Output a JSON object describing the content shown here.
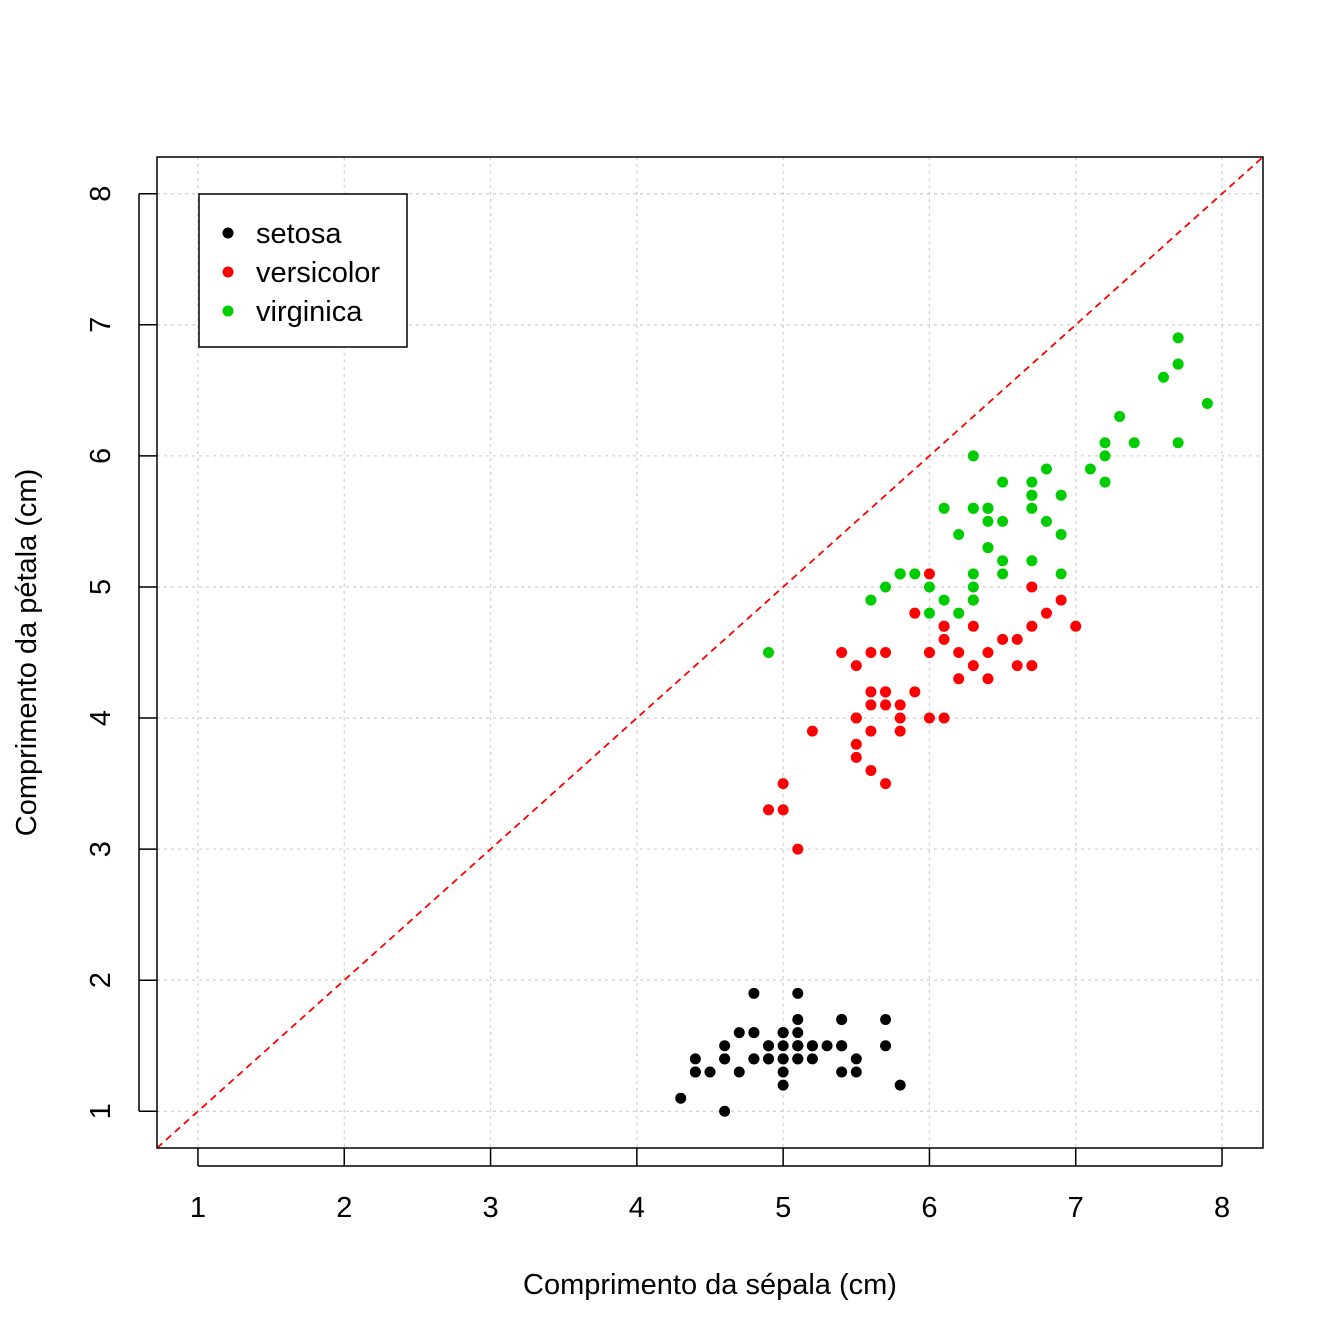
{
  "chart_data": {
    "type": "scatter",
    "title": "",
    "xlabel": "Comprimento da sépala (cm)",
    "ylabel": "Comprimento da pétala (cm)",
    "xlim": [
      0.72,
      8.28
    ],
    "ylim": [
      0.72,
      8.28
    ],
    "xticks": [
      "1",
      "2",
      "3",
      "4",
      "5",
      "6",
      "7",
      "8"
    ],
    "yticks": [
      "1",
      "2",
      "3",
      "4",
      "5",
      "6",
      "7",
      "8"
    ],
    "grid": true,
    "legend_position": "top-left",
    "reference_line": {
      "slope": 1,
      "intercept": 0,
      "color": "#ff0000",
      "style": "dashed"
    },
    "series": [
      {
        "name": "setosa",
        "color": "#000000",
        "points": [
          [
            5.1,
            1.4
          ],
          [
            4.9,
            1.4
          ],
          [
            4.7,
            1.3
          ],
          [
            4.6,
            1.5
          ],
          [
            5.0,
            1.4
          ],
          [
            5.4,
            1.7
          ],
          [
            4.6,
            1.4
          ],
          [
            5.0,
            1.5
          ],
          [
            4.4,
            1.4
          ],
          [
            4.9,
            1.5
          ],
          [
            5.4,
            1.5
          ],
          [
            4.8,
            1.6
          ],
          [
            4.8,
            1.4
          ],
          [
            4.3,
            1.1
          ],
          [
            5.8,
            1.2
          ],
          [
            5.7,
            1.5
          ],
          [
            5.4,
            1.3
          ],
          [
            5.1,
            1.4
          ],
          [
            5.7,
            1.7
          ],
          [
            5.1,
            1.5
          ],
          [
            5.4,
            1.7
          ],
          [
            5.1,
            1.5
          ],
          [
            4.6,
            1.0
          ],
          [
            5.1,
            1.7
          ],
          [
            4.8,
            1.9
          ],
          [
            5.0,
            1.6
          ],
          [
            5.0,
            1.6
          ],
          [
            5.2,
            1.5
          ],
          [
            5.2,
            1.4
          ],
          [
            4.7,
            1.6
          ],
          [
            4.8,
            1.6
          ],
          [
            5.4,
            1.5
          ],
          [
            5.2,
            1.5
          ],
          [
            5.5,
            1.4
          ],
          [
            4.9,
            1.5
          ],
          [
            5.0,
            1.2
          ],
          [
            5.5,
            1.3
          ],
          [
            4.9,
            1.4
          ],
          [
            4.4,
            1.3
          ],
          [
            5.1,
            1.5
          ],
          [
            5.0,
            1.3
          ],
          [
            4.5,
            1.3
          ],
          [
            4.4,
            1.3
          ],
          [
            5.0,
            1.6
          ],
          [
            5.1,
            1.9
          ],
          [
            4.8,
            1.4
          ],
          [
            5.1,
            1.6
          ],
          [
            4.6,
            1.4
          ],
          [
            5.3,
            1.5
          ],
          [
            5.0,
            1.4
          ]
        ]
      },
      {
        "name": "versicolor",
        "color": "#ff0000",
        "points": [
          [
            7.0,
            4.7
          ],
          [
            6.4,
            4.5
          ],
          [
            6.9,
            4.9
          ],
          [
            5.5,
            4.0
          ],
          [
            6.5,
            4.6
          ],
          [
            5.7,
            4.5
          ],
          [
            6.3,
            4.7
          ],
          [
            4.9,
            3.3
          ],
          [
            6.6,
            4.6
          ],
          [
            5.2,
            3.9
          ],
          [
            5.0,
            3.5
          ],
          [
            5.9,
            4.2
          ],
          [
            6.0,
            4.0
          ],
          [
            6.1,
            4.7
          ],
          [
            5.6,
            3.6
          ],
          [
            6.7,
            4.4
          ],
          [
            5.6,
            4.5
          ],
          [
            5.8,
            4.1
          ],
          [
            6.2,
            4.5
          ],
          [
            5.6,
            3.9
          ],
          [
            5.9,
            4.8
          ],
          [
            6.1,
            4.0
          ],
          [
            6.3,
            4.9
          ],
          [
            6.1,
            4.7
          ],
          [
            6.4,
            4.3
          ],
          [
            6.6,
            4.4
          ],
          [
            6.8,
            4.8
          ],
          [
            6.7,
            5.0
          ],
          [
            6.0,
            4.5
          ],
          [
            5.7,
            3.5
          ],
          [
            5.5,
            3.8
          ],
          [
            5.5,
            3.7
          ],
          [
            5.8,
            3.9
          ],
          [
            6.0,
            5.1
          ],
          [
            5.4,
            4.5
          ],
          [
            6.0,
            4.5
          ],
          [
            6.7,
            4.7
          ],
          [
            6.3,
            4.4
          ],
          [
            5.6,
            4.1
          ],
          [
            5.5,
            4.0
          ],
          [
            5.5,
            4.4
          ],
          [
            6.1,
            4.6
          ],
          [
            5.8,
            4.0
          ],
          [
            5.0,
            3.3
          ],
          [
            5.6,
            4.2
          ],
          [
            5.7,
            4.2
          ],
          [
            5.7,
            4.2
          ],
          [
            6.2,
            4.3
          ],
          [
            5.1,
            3.0
          ],
          [
            5.7,
            4.1
          ]
        ]
      },
      {
        "name": "virginica",
        "color": "#00cd00",
        "points": [
          [
            6.3,
            6.0
          ],
          [
            5.8,
            5.1
          ],
          [
            7.1,
            5.9
          ],
          [
            6.3,
            5.6
          ],
          [
            6.5,
            5.8
          ],
          [
            7.6,
            6.6
          ],
          [
            4.9,
            4.5
          ],
          [
            7.3,
            6.3
          ],
          [
            6.7,
            5.8
          ],
          [
            7.2,
            6.1
          ],
          [
            6.5,
            5.1
          ],
          [
            6.4,
            5.3
          ],
          [
            6.8,
            5.5
          ],
          [
            5.7,
            5.0
          ],
          [
            5.8,
            5.1
          ],
          [
            6.4,
            5.3
          ],
          [
            6.5,
            5.5
          ],
          [
            7.7,
            6.7
          ],
          [
            7.7,
            6.9
          ],
          [
            6.0,
            5.0
          ],
          [
            6.9,
            5.7
          ],
          [
            5.6,
            4.9
          ],
          [
            7.7,
            6.7
          ],
          [
            6.3,
            4.9
          ],
          [
            6.7,
            5.7
          ],
          [
            7.2,
            6.0
          ],
          [
            6.2,
            4.8
          ],
          [
            6.1,
            4.9
          ],
          [
            6.4,
            5.6
          ],
          [
            7.2,
            5.8
          ],
          [
            7.4,
            6.1
          ],
          [
            7.9,
            6.4
          ],
          [
            6.4,
            5.6
          ],
          [
            6.3,
            5.1
          ],
          [
            6.1,
            5.6
          ],
          [
            7.7,
            6.1
          ],
          [
            6.3,
            5.6
          ],
          [
            6.4,
            5.5
          ],
          [
            6.0,
            4.8
          ],
          [
            6.9,
            5.4
          ],
          [
            6.7,
            5.6
          ],
          [
            6.9,
            5.1
          ],
          [
            5.8,
            5.1
          ],
          [
            6.8,
            5.9
          ],
          [
            6.7,
            5.7
          ],
          [
            6.7,
            5.2
          ],
          [
            6.3,
            5.0
          ],
          [
            6.5,
            5.2
          ],
          [
            6.2,
            5.4
          ],
          [
            5.9,
            5.1
          ]
        ]
      }
    ]
  }
}
